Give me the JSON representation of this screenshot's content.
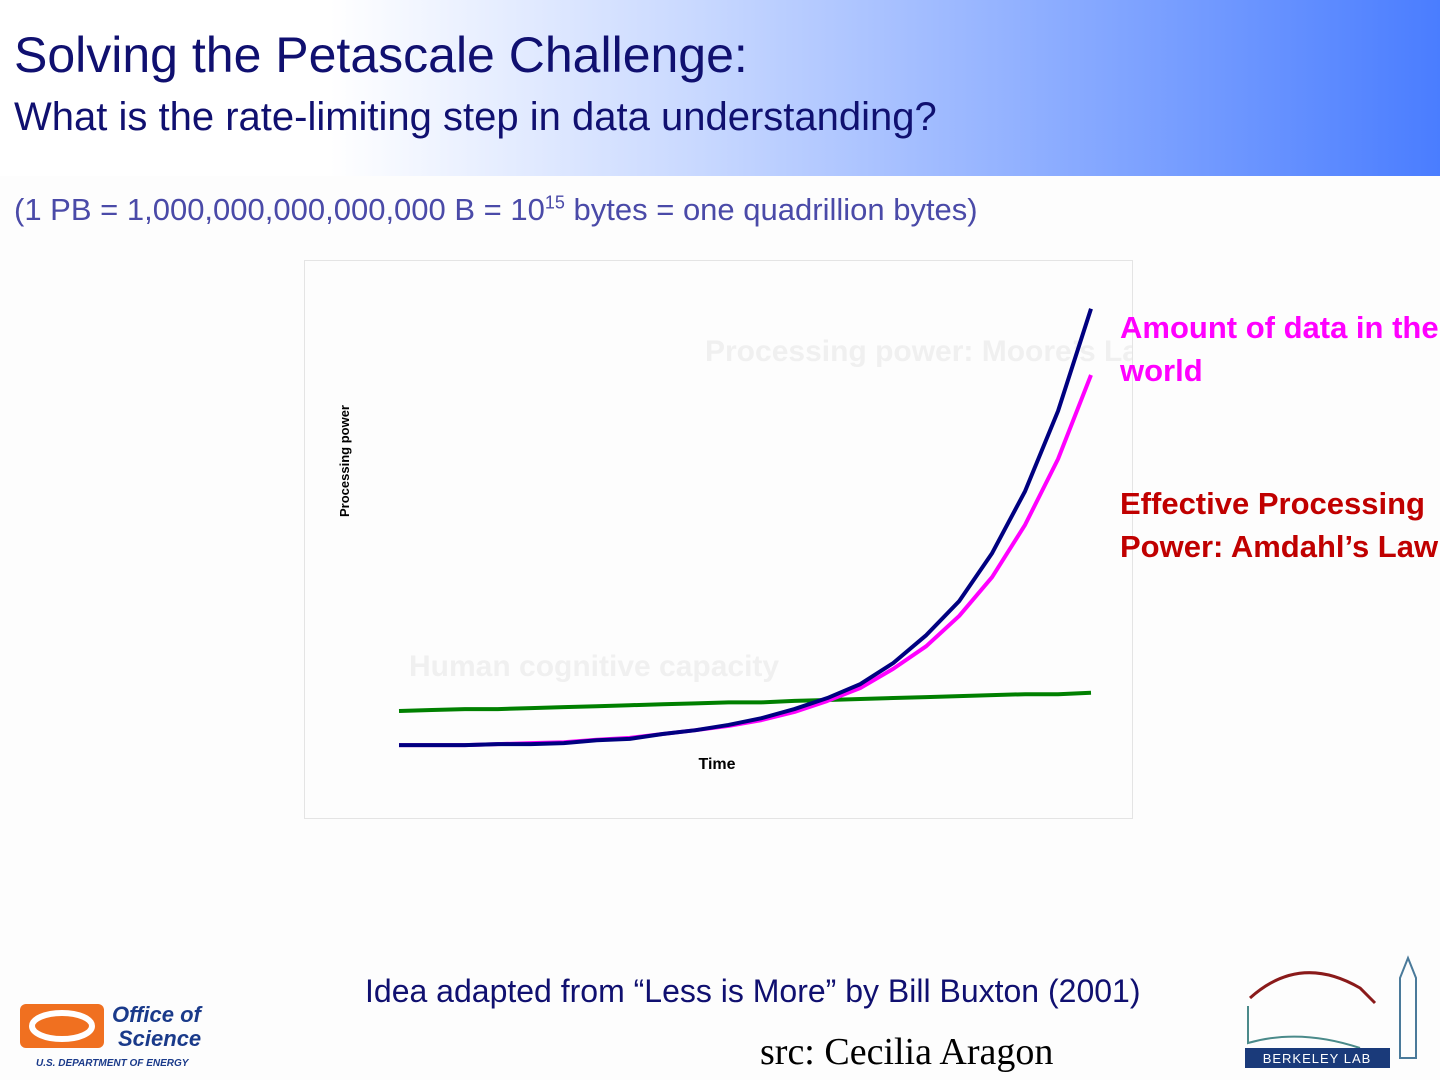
{
  "header": {
    "title": "Solving the Petascale Challenge:",
    "subtitle": "What is the rate-limiting step in data understanding?"
  },
  "note": {
    "before": "(1 PB = 1,000,000,000,000,000 B = 10",
    "exponent": "15",
    "after": " bytes = one quadrillion bytes)"
  },
  "chart_data": {
    "type": "line",
    "y_label": "Processing power",
    "x_label": "Time",
    "annotation": "Effective Processing Power: Amdahl’s Law",
    "categories": [
      null,
      null,
      null,
      null,
      null,
      null,
      null,
      null,
      null,
      null,
      null,
      null,
      null,
      null,
      null,
      null,
      null,
      null,
      null,
      null,
      null,
      null
    ],
    "ylim": [
      0,
      100
    ],
    "series": [
      {
        "name": "Amount of data in the world",
        "color": "#ff00ff",
        "values": [
          5.4,
          5.4,
          5.4,
          5.6,
          5.8,
          6.0,
          6.5,
          6.9,
          7.7,
          8.5,
          9.4,
          10.6,
          12.3,
          14.6,
          17.3,
          21.3,
          26.0,
          32.3,
          40.4,
          51.3,
          65.0,
          82.5
        ]
      },
      {
        "name": "Processing power: Moore’s Law",
        "color": "#000080",
        "values": [
          5.4,
          5.4,
          5.4,
          5.6,
          5.6,
          5.8,
          6.4,
          6.7,
          7.7,
          8.5,
          9.6,
          11.0,
          12.9,
          15.2,
          18.1,
          22.5,
          28.3,
          35.4,
          45.4,
          58.3,
          75.0,
          96.3
        ]
      },
      {
        "name": "Human cognitive capacity",
        "color": "#008000",
        "values": [
          12.5,
          12.7,
          12.9,
          12.9,
          13.1,
          13.3,
          13.5,
          13.7,
          13.9,
          14.1,
          14.3,
          14.3,
          14.6,
          14.8,
          15.0,
          15.2,
          15.4,
          15.6,
          15.8,
          16.0,
          16.0,
          16.3
        ]
      }
    ]
  },
  "footer": {
    "credit": "Idea adapted from “Less is More” by Bill Buxton (2001)",
    "source": "src: Cecilia Aragon"
  },
  "logos": {
    "doe_line1": "Office of",
    "doe_line2": "Science",
    "doe_sub": "U.S. DEPARTMENT OF ENERGY",
    "berkeley": "BERKELEY LAB"
  }
}
